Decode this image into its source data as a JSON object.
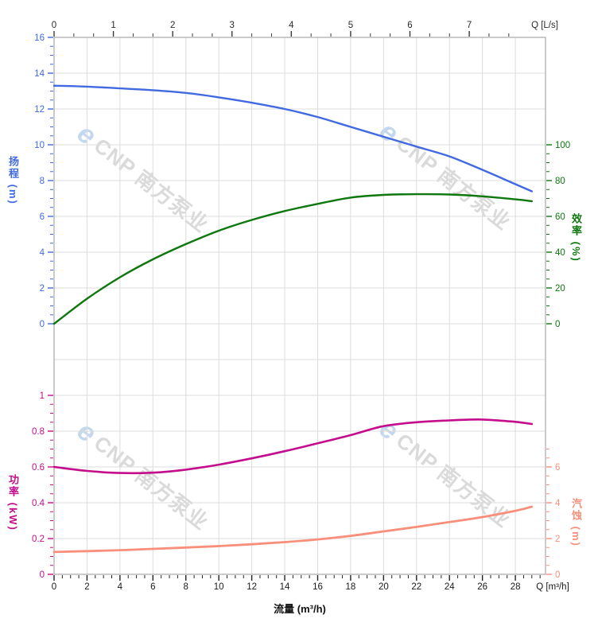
{
  "watermark": {
    "logo_letter": "e",
    "text": "CNP 南方泵业"
  },
  "chart_data": {
    "type": "line",
    "grid": "on",
    "x_axes": {
      "bottom": {
        "axis_label": "流量 (m³/h)",
        "corner_label": "Q [m³/h]",
        "unit": "m³/h",
        "ticks": [
          0,
          2,
          4,
          6,
          8,
          10,
          12,
          14,
          16,
          18,
          20,
          22,
          24,
          26,
          28
        ],
        "minor_step": 0.5,
        "minor_max": 29.5,
        "range": [
          0,
          29.83
        ],
        "color": "#1a1a1a"
      },
      "top": {
        "corner_label": "Q [L/s]",
        "unit": "L/s",
        "ticks": [
          0,
          1,
          2,
          3,
          4,
          5,
          6,
          7
        ],
        "minor_divisions_per_unit": 3,
        "minor_max": 7.67,
        "range": [
          0,
          8.29
        ],
        "color": "#2b2b2b"
      }
    },
    "y_axes": {
      "head": {
        "label": "扬程 (m)",
        "side": "left",
        "color": "#4169E1",
        "ticks": [
          0,
          2,
          4,
          6,
          8,
          10,
          12,
          14,
          16
        ],
        "minor_step": 0.5,
        "minor_max": 16,
        "range": [
          0,
          16
        ]
      },
      "efficiency": {
        "label": "效率 (%)",
        "side": "right",
        "color": "#0E770E",
        "ticks": [
          0,
          20,
          40,
          60,
          80,
          100
        ],
        "minor_step": 5,
        "minor_max": 100,
        "range": [
          0,
          100
        ]
      },
      "power": {
        "label": "功率 (kW)",
        "side": "left",
        "color": "#C40D8C",
        "ticks": [
          0,
          0.2,
          0.4,
          0.6,
          0.8,
          1
        ],
        "minor_step": 0.05,
        "minor_max": 1,
        "range": [
          0,
          1
        ]
      },
      "npsh": {
        "label": "汽蚀 (m)",
        "side": "right",
        "color": "#F98F7B",
        "ticks": [
          0,
          2,
          4,
          6
        ],
        "minor_step": 0.5,
        "minor_max": 7,
        "range": [
          0,
          7
        ]
      }
    },
    "series": [
      {
        "name": "扬程",
        "axis": "head",
        "color": "#4169E1",
        "width": 2.4,
        "points": [
          [
            0,
            13.3
          ],
          [
            2,
            13.25
          ],
          [
            4,
            13.15
          ],
          [
            6,
            13.05
          ],
          [
            8,
            12.9
          ],
          [
            10,
            12.65
          ],
          [
            12,
            12.35
          ],
          [
            14,
            12.0
          ],
          [
            16,
            11.55
          ],
          [
            18,
            11.0
          ],
          [
            20,
            10.45
          ],
          [
            22,
            9.9
          ],
          [
            24,
            9.35
          ],
          [
            26,
            8.6
          ],
          [
            28,
            7.8
          ],
          [
            29,
            7.4
          ]
        ]
      },
      {
        "name": "效率",
        "axis": "efficiency",
        "color": "#0E770E",
        "width": 2.4,
        "points": [
          [
            0,
            0
          ],
          [
            2,
            14
          ],
          [
            4,
            26
          ],
          [
            6,
            36
          ],
          [
            8,
            44.5
          ],
          [
            10,
            52
          ],
          [
            12,
            58
          ],
          [
            14,
            63
          ],
          [
            16,
            67
          ],
          [
            18,
            70.5
          ],
          [
            20,
            72
          ],
          [
            22,
            72.4
          ],
          [
            24,
            72.2
          ],
          [
            26,
            71.2
          ],
          [
            28,
            69.5
          ],
          [
            29,
            68.5
          ]
        ]
      },
      {
        "name": "功率",
        "axis": "power",
        "color": "#C40D8C",
        "width": 2.6,
        "points": [
          [
            0,
            0.6
          ],
          [
            2,
            0.578
          ],
          [
            4,
            0.566
          ],
          [
            6,
            0.568
          ],
          [
            8,
            0.585
          ],
          [
            10,
            0.613
          ],
          [
            12,
            0.648
          ],
          [
            14,
            0.688
          ],
          [
            16,
            0.732
          ],
          [
            18,
            0.778
          ],
          [
            20,
            0.828
          ],
          [
            22,
            0.85
          ],
          [
            24,
            0.86
          ],
          [
            26,
            0.865
          ],
          [
            28,
            0.852
          ],
          [
            29,
            0.84
          ]
        ]
      },
      {
        "name": "汽蚀",
        "axis": "npsh",
        "color": "#F98F7B",
        "width": 2.8,
        "points": [
          [
            0,
            1.25
          ],
          [
            2,
            1.3
          ],
          [
            4,
            1.35
          ],
          [
            6,
            1.42
          ],
          [
            8,
            1.5
          ],
          [
            10,
            1.58
          ],
          [
            12,
            1.68
          ],
          [
            14,
            1.8
          ],
          [
            16,
            1.95
          ],
          [
            18,
            2.15
          ],
          [
            20,
            2.4
          ],
          [
            22,
            2.65
          ],
          [
            24,
            2.92
          ],
          [
            26,
            3.2
          ],
          [
            28,
            3.55
          ],
          [
            29,
            3.78
          ]
        ]
      }
    ]
  }
}
